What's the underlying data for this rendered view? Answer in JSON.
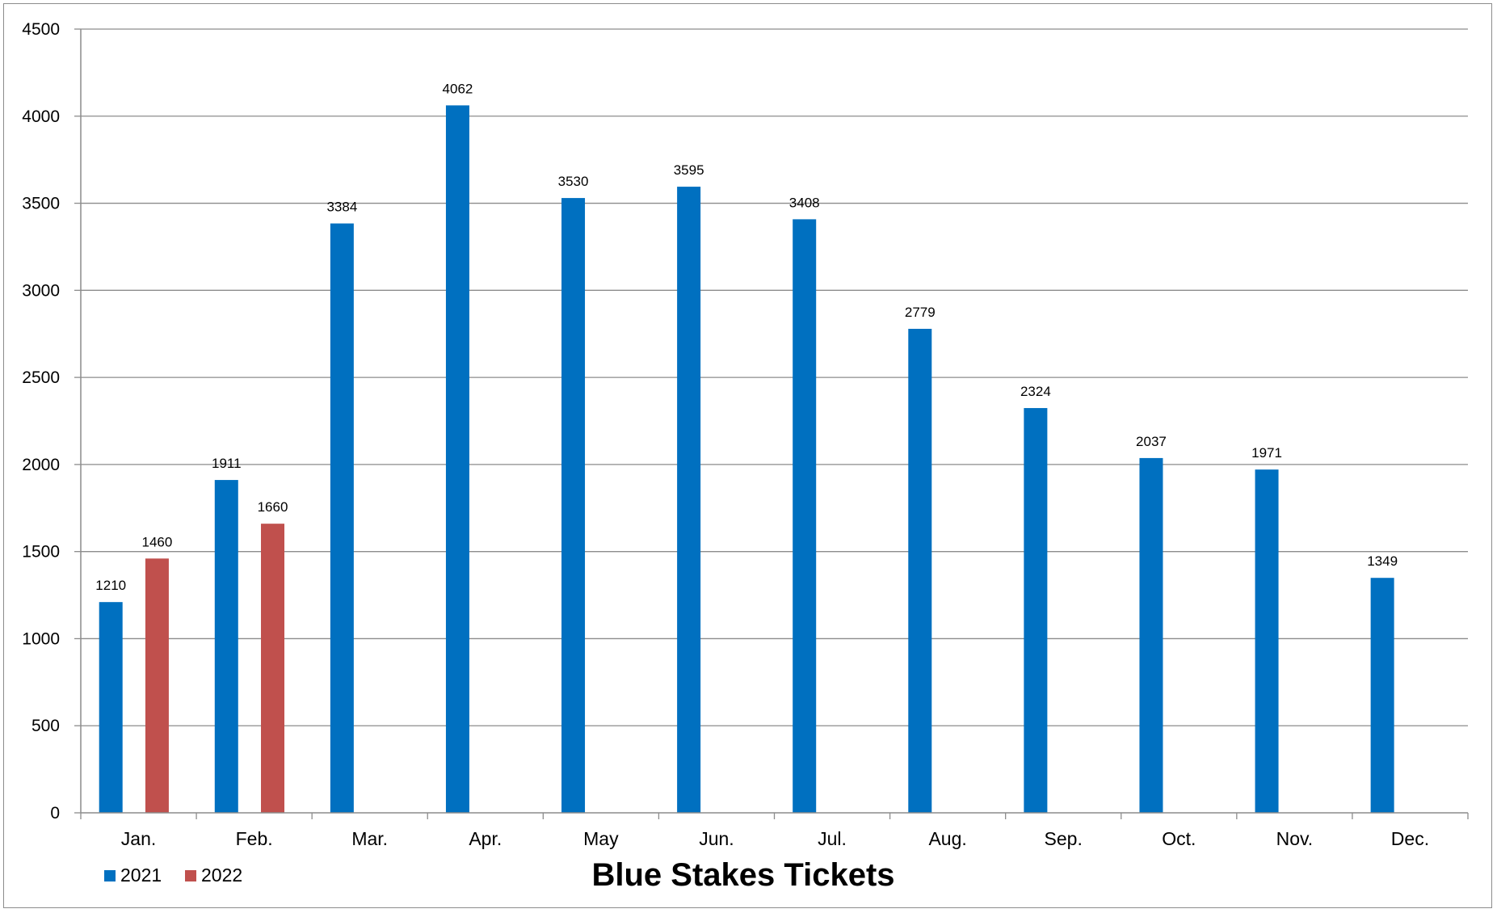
{
  "chart_data": {
    "type": "bar",
    "title": "Blue Stakes Tickets",
    "xlabel": "",
    "ylabel": "",
    "categories": [
      "Jan.",
      "Feb.",
      "Mar.",
      "Apr.",
      "May",
      "Jun.",
      "Jul.",
      "Aug.",
      "Sep.",
      "Oct.",
      "Nov.",
      "Dec."
    ],
    "series": [
      {
        "name": "2021",
        "color": "#0070C0",
        "values": [
          1210,
          1911,
          3384,
          4062,
          3530,
          3595,
          3408,
          2779,
          2324,
          2037,
          1971,
          1349
        ]
      },
      {
        "name": "2022",
        "color": "#C0504D",
        "values": [
          1460,
          1660,
          null,
          null,
          null,
          null,
          null,
          null,
          null,
          null,
          null,
          null
        ]
      }
    ],
    "ylim": [
      0,
      4500
    ],
    "yticks": [
      0,
      500,
      1000,
      1500,
      2000,
      2500,
      3000,
      3500,
      4000,
      4500
    ],
    "grid": true,
    "data_labels": true,
    "legend_position": "bottom-left"
  }
}
